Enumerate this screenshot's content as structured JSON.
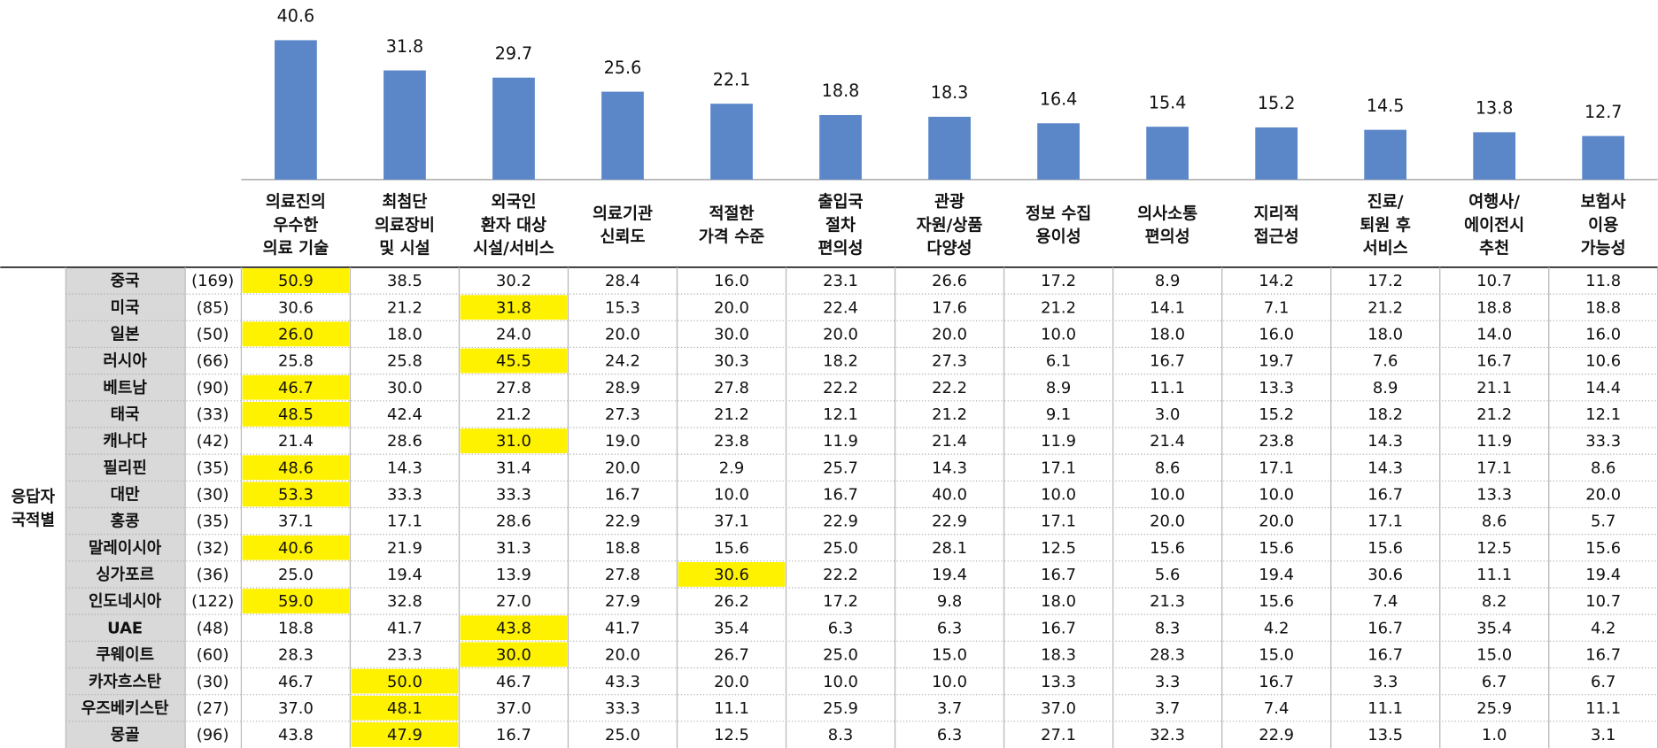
{
  "chart_data": {
    "type": "bar",
    "color": "#5b87c9",
    "label_color": "#5b87c9",
    "categories": [
      "의료진의\n우수한\n의료 기술",
      "최첨단\n의료장비\n및 시설",
      "외국인\n환자 대상\n시설/서비스",
      "의료기관\n신뢰도",
      "적절한\n가격 수준",
      "출입국\n절차\n편의성",
      "관광\n자원/상품\n다양성",
      "정보 수집\n용이성",
      "의사소통\n편의성",
      "지리적\n접근성",
      "진료/\n퇴원 후\n서비스",
      "여행사/\n에이전시\n추천",
      "보험사\n이용\n가능성"
    ],
    "values": [
      40.6,
      31.8,
      29.7,
      25.6,
      22.1,
      18.8,
      18.3,
      16.4,
      15.4,
      15.2,
      14.5,
      13.8,
      12.7
    ]
  },
  "table": {
    "group": "응답자\n국적별",
    "highlight_color": "#fff200",
    "rows": [
      {
        "name": "중국",
        "n": "(169)",
        "highlight": 0,
        "cells": [
          "50.9",
          "38.5",
          "30.2",
          "28.4",
          "16.0",
          "23.1",
          "26.6",
          "17.2",
          "8.9",
          "14.2",
          "17.2",
          "10.7",
          "11.8"
        ]
      },
      {
        "name": "미국",
        "n": "(85)",
        "highlight": 2,
        "cells": [
          "30.6",
          "21.2",
          "31.8",
          "15.3",
          "20.0",
          "22.4",
          "17.6",
          "21.2",
          "14.1",
          "7.1",
          "21.2",
          "18.8",
          "18.8"
        ]
      },
      {
        "name": "일본",
        "n": "(50)",
        "highlight": 0,
        "cells": [
          "26.0",
          "18.0",
          "24.0",
          "20.0",
          "30.0",
          "20.0",
          "20.0",
          "10.0",
          "18.0",
          "16.0",
          "18.0",
          "14.0",
          "16.0"
        ]
      },
      {
        "name": "러시아",
        "n": "(66)",
        "highlight": 2,
        "cells": [
          "25.8",
          "25.8",
          "45.5",
          "24.2",
          "30.3",
          "18.2",
          "27.3",
          "6.1",
          "16.7",
          "19.7",
          "7.6",
          "16.7",
          "10.6"
        ]
      },
      {
        "name": "베트남",
        "n": "(90)",
        "highlight": 0,
        "cells": [
          "46.7",
          "30.0",
          "27.8",
          "28.9",
          "27.8",
          "22.2",
          "22.2",
          "8.9",
          "11.1",
          "13.3",
          "8.9",
          "21.1",
          "14.4"
        ]
      },
      {
        "name": "태국",
        "n": "(33)",
        "highlight": 0,
        "cells": [
          "48.5",
          "42.4",
          "21.2",
          "27.3",
          "21.2",
          "12.1",
          "21.2",
          "9.1",
          "3.0",
          "15.2",
          "18.2",
          "21.2",
          "12.1"
        ]
      },
      {
        "name": "캐나다",
        "n": "(42)",
        "highlight": 2,
        "cells": [
          "21.4",
          "28.6",
          "31.0",
          "19.0",
          "23.8",
          "11.9",
          "21.4",
          "11.9",
          "21.4",
          "23.8",
          "14.3",
          "11.9",
          "33.3"
        ]
      },
      {
        "name": "필리핀",
        "n": "(35)",
        "highlight": 0,
        "cells": [
          "48.6",
          "14.3",
          "31.4",
          "20.0",
          "2.9",
          "25.7",
          "14.3",
          "17.1",
          "8.6",
          "17.1",
          "14.3",
          "17.1",
          "8.6"
        ]
      },
      {
        "name": "대만",
        "n": "(30)",
        "highlight": 0,
        "cells": [
          "53.3",
          "33.3",
          "33.3",
          "16.7",
          "10.0",
          "16.7",
          "40.0",
          "10.0",
          "10.0",
          "10.0",
          "16.7",
          "13.3",
          "20.0"
        ]
      },
      {
        "name": "홍콩",
        "n": "(35)",
        "highlight": null,
        "cells": [
          "37.1",
          "17.1",
          "28.6",
          "22.9",
          "37.1",
          "22.9",
          "22.9",
          "17.1",
          "20.0",
          "20.0",
          "17.1",
          "8.6",
          "5.7"
        ]
      },
      {
        "name": "말레이시아",
        "n": "(32)",
        "highlight": 0,
        "cells": [
          "40.6",
          "21.9",
          "31.3",
          "18.8",
          "15.6",
          "25.0",
          "28.1",
          "12.5",
          "15.6",
          "15.6",
          "15.6",
          "12.5",
          "15.6"
        ]
      },
      {
        "name": "싱가포르",
        "n": "(36)",
        "highlight": 4,
        "cells": [
          "25.0",
          "19.4",
          "13.9",
          "27.8",
          "30.6",
          "22.2",
          "19.4",
          "16.7",
          "5.6",
          "19.4",
          "30.6",
          "11.1",
          "19.4"
        ]
      },
      {
        "name": "인도네시아",
        "n": "(122)",
        "highlight": 0,
        "cells": [
          "59.0",
          "32.8",
          "27.0",
          "27.9",
          "26.2",
          "17.2",
          "9.8",
          "18.0",
          "21.3",
          "15.6",
          "7.4",
          "8.2",
          "10.7"
        ]
      },
      {
        "name": "UAE",
        "n": "(48)",
        "highlight": 2,
        "cells": [
          "18.8",
          "41.7",
          "43.8",
          "41.7",
          "35.4",
          "6.3",
          "6.3",
          "16.7",
          "8.3",
          "4.2",
          "16.7",
          "35.4",
          "4.2"
        ]
      },
      {
        "name": "쿠웨이트",
        "n": "(60)",
        "highlight": 2,
        "cells": [
          "28.3",
          "23.3",
          "30.0",
          "20.0",
          "26.7",
          "25.0",
          "15.0",
          "18.3",
          "28.3",
          "15.0",
          "16.7",
          "15.0",
          "16.7"
        ]
      },
      {
        "name": "카자흐스탄",
        "n": "(30)",
        "highlight": 1,
        "cells": [
          "46.7",
          "50.0",
          "46.7",
          "43.3",
          "20.0",
          "10.0",
          "10.0",
          "13.3",
          "3.3",
          "16.7",
          "3.3",
          "6.7",
          "6.7"
        ]
      },
      {
        "name": "우즈베키스탄",
        "n": "(27)",
        "highlight": 1,
        "cells": [
          "37.0",
          "48.1",
          "37.0",
          "33.3",
          "11.1",
          "25.9",
          "3.7",
          "37.0",
          "3.7",
          "7.4",
          "11.1",
          "25.9",
          "11.1"
        ]
      },
      {
        "name": "몽골",
        "n": "(96)",
        "highlight": 1,
        "cells": [
          "43.8",
          "47.9",
          "16.7",
          "25.0",
          "12.5",
          "8.3",
          "6.3",
          "27.1",
          "32.3",
          "22.9",
          "13.5",
          "1.0",
          "3.1"
        ]
      }
    ]
  }
}
